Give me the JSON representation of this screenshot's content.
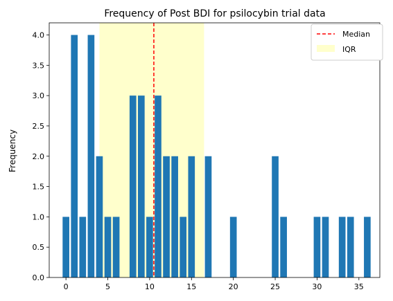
{
  "chart_data": {
    "type": "bar",
    "title": "Frequency of Post BDI for psilocybin trial data",
    "xlabel": "",
    "ylabel": "Frequency",
    "xlim": [
      -2,
      37.5
    ],
    "ylim": [
      0,
      4.2
    ],
    "xticks": [
      0,
      5,
      10,
      15,
      20,
      25,
      30,
      35
    ],
    "yticks": [
      0.0,
      0.5,
      1.0,
      1.5,
      2.0,
      2.5,
      3.0,
      3.5,
      4.0
    ],
    "grid": false,
    "legend_position": "top-right",
    "colors": {
      "bar": "#1f77b4",
      "median": "#ff0000",
      "iqr": "#ffff99"
    },
    "bars": [
      {
        "x": 0,
        "y": 1
      },
      {
        "x": 1,
        "y": 4
      },
      {
        "x": 2,
        "y": 1
      },
      {
        "x": 3,
        "y": 4
      },
      {
        "x": 4,
        "y": 2
      },
      {
        "x": 5,
        "y": 1
      },
      {
        "x": 6,
        "y": 1
      },
      {
        "x": 8,
        "y": 3
      },
      {
        "x": 9,
        "y": 3
      },
      {
        "x": 10,
        "y": 1
      },
      {
        "x": 11,
        "y": 3
      },
      {
        "x": 12,
        "y": 2
      },
      {
        "x": 13,
        "y": 2
      },
      {
        "x": 14,
        "y": 1
      },
      {
        "x": 15,
        "y": 2
      },
      {
        "x": 17,
        "y": 2
      },
      {
        "x": 20,
        "y": 1
      },
      {
        "x": 25,
        "y": 2
      },
      {
        "x": 26,
        "y": 1
      },
      {
        "x": 30,
        "y": 1
      },
      {
        "x": 31,
        "y": 1
      },
      {
        "x": 33,
        "y": 1
      },
      {
        "x": 34,
        "y": 1
      },
      {
        "x": 36,
        "y": 1
      }
    ],
    "median": {
      "label": "Median",
      "value": 10.5
    },
    "iqr": {
      "label": "IQR",
      "range": [
        4,
        16.5
      ]
    }
  }
}
